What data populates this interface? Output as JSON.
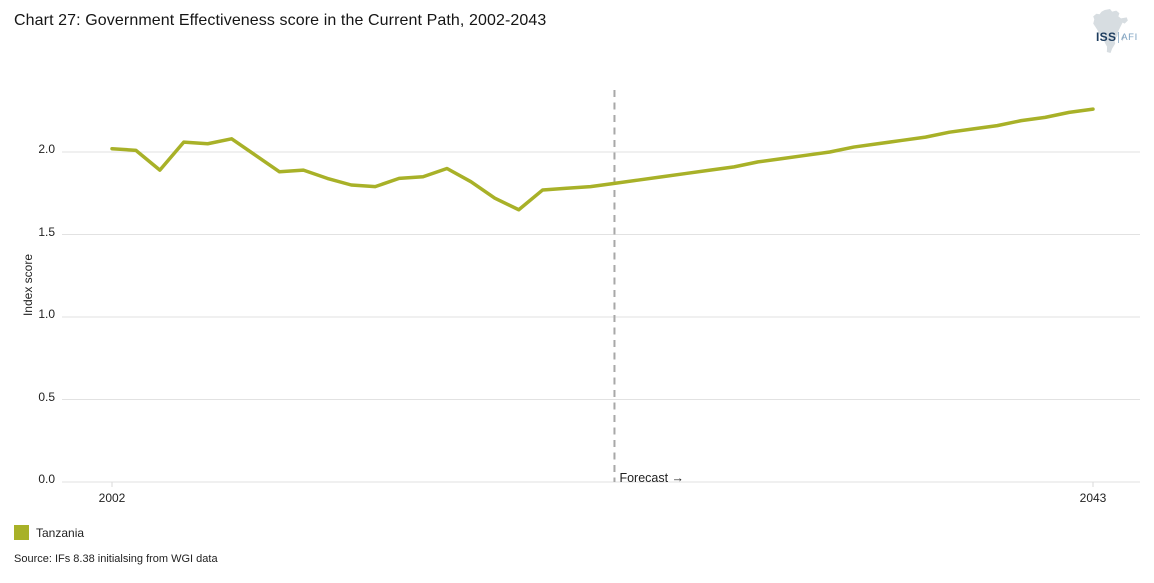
{
  "header": {
    "title": "Chart 27: Government Effectiveness score in the Current Path, 2002-2043",
    "logo": {
      "iss": "ISS",
      "afi": "AFI"
    }
  },
  "chart_data": {
    "type": "line",
    "title": "Chart 27: Government Effectiveness score in the Current Path, 2002-2043",
    "xlabel": "",
    "ylabel": "Index score",
    "ylim": [
      0.0,
      2.4
    ],
    "ytick_values": [
      2.0,
      1.5,
      1.0,
      0.5,
      0.0
    ],
    "ytick_labels": [
      "2.0",
      "1.5",
      "1.0",
      "0.5",
      "0.0"
    ],
    "xtick_labels": [
      "2002",
      "2043"
    ],
    "grid": "horizontal-only",
    "legend_position": "bottom-left",
    "x": [
      2002,
      2003,
      2004,
      2005,
      2006,
      2007,
      2008,
      2009,
      2010,
      2011,
      2012,
      2013,
      2014,
      2015,
      2016,
      2017,
      2018,
      2019,
      2020,
      2021,
      2022,
      2023,
      2024,
      2025,
      2026,
      2027,
      2028,
      2029,
      2030,
      2031,
      2032,
      2033,
      2034,
      2035,
      2036,
      2037,
      2038,
      2039,
      2040,
      2041,
      2042,
      2043
    ],
    "series": [
      {
        "name": "Tanzania",
        "color": "#a8b128",
        "values": [
          2.02,
          2.01,
          1.89,
          2.06,
          2.05,
          2.08,
          1.98,
          1.88,
          1.89,
          1.84,
          1.8,
          1.79,
          1.84,
          1.85,
          1.9,
          1.82,
          1.72,
          1.65,
          1.77,
          1.78,
          1.79,
          1.81,
          1.83,
          1.85,
          1.87,
          1.89,
          1.91,
          1.94,
          1.96,
          1.98,
          2.0,
          2.03,
          2.05,
          2.07,
          2.09,
          2.12,
          2.14,
          2.16,
          2.19,
          2.21,
          2.24,
          2.26
        ]
      }
    ],
    "forecast": {
      "start_year": 2023,
      "label": "Forecast →"
    }
  },
  "legend": {
    "items": [
      {
        "label": "Tanzania",
        "color": "#a8b128"
      }
    ]
  },
  "source": "Source: IFs 8.38 initialsing from WGI data",
  "colors": {
    "line": "#a8b128",
    "gridline": "#e2e2e2",
    "forecast_divider": "#a8a8a8",
    "axis_tick": "#d9d9d9",
    "logo_iss": "#1d3c5e",
    "logo_afi": "#7ba0c0",
    "logo_africa": "#d7dde1"
  }
}
